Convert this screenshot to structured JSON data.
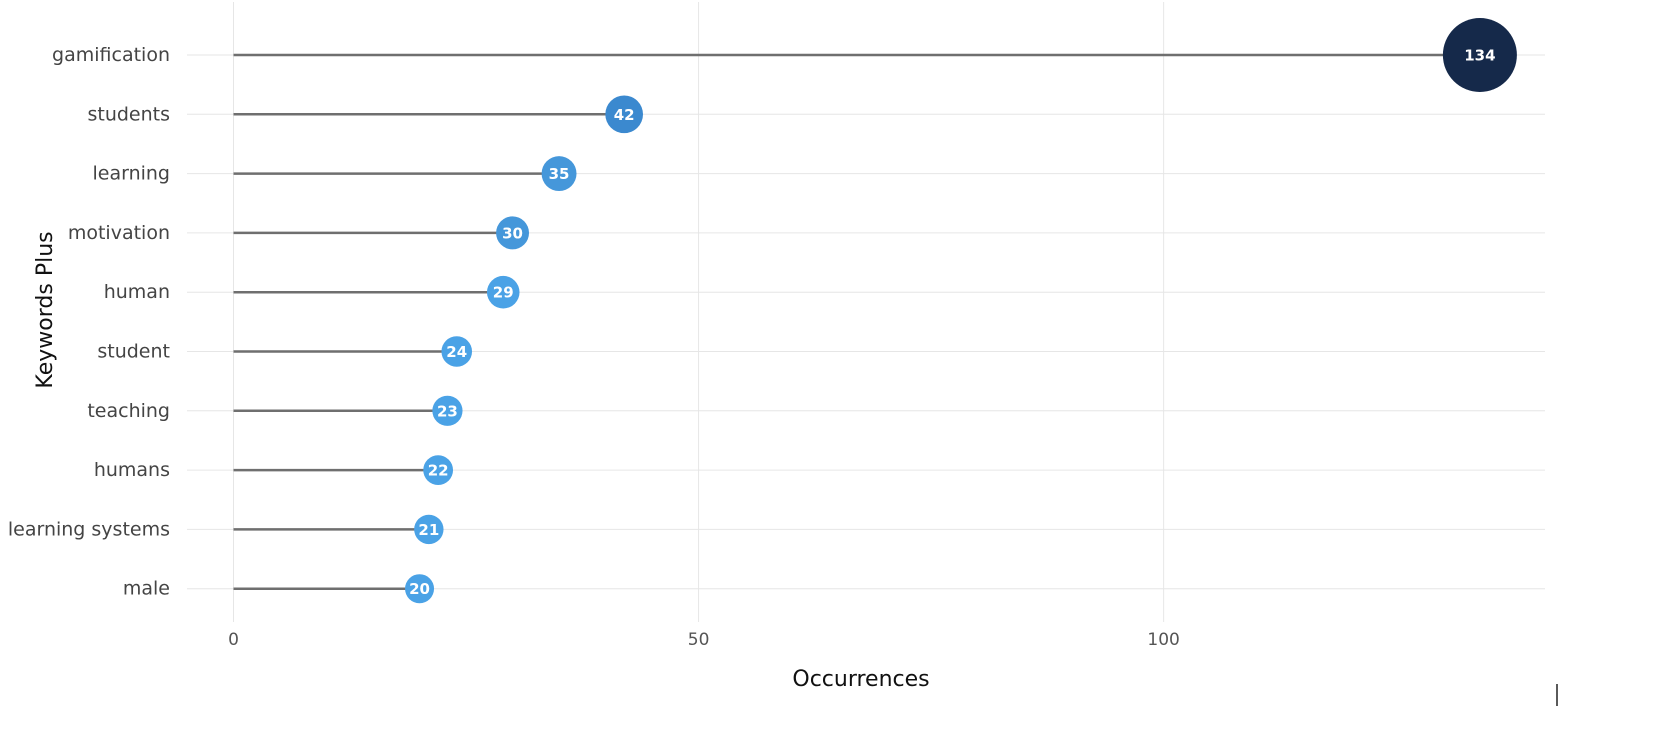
{
  "chart_data": {
    "type": "lollipop",
    "title": "",
    "xlabel": "Occurrences",
    "ylabel": "Keywords Plus",
    "categories": [
      "gamification",
      "students",
      "learning",
      "motivation",
      "human",
      "student",
      "teaching",
      "humans",
      "learning systems",
      "male"
    ],
    "values": [
      134,
      42,
      35,
      30,
      29,
      24,
      23,
      22,
      21,
      20
    ],
    "xlim": [
      -5,
      141
    ],
    "xticks": [
      0,
      50,
      100
    ],
    "grid": true,
    "legend": "none",
    "colors": {
      "max_color": "#15294a",
      "high_color": "#3b89cf",
      "base_color": "#4aa2e6",
      "stem_color": "#6f6f6f",
      "grid_color": "#e6e6e6"
    }
  }
}
